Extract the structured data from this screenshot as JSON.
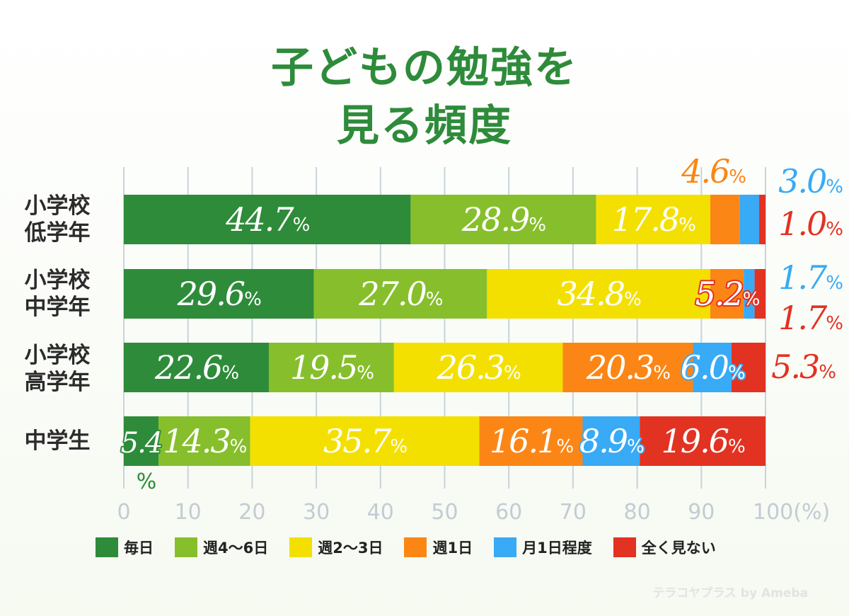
{
  "title_line1": "子どもの勉強を",
  "title_line2": "見る頻度",
  "brand": "テラコヤプラス by Ameba",
  "chart_data": {
    "type": "bar",
    "orientation": "horizontal-stacked-percent",
    "categories": [
      {
        "lines": [
          "小学校",
          "低学年"
        ]
      },
      {
        "lines": [
          "小学校",
          "中学年"
        ]
      },
      {
        "lines": [
          "小学校",
          "高学年"
        ]
      },
      {
        "lines": [
          "中学生"
        ]
      }
    ],
    "series": [
      {
        "name": "毎日",
        "color": "#2e8b3a",
        "label_color": "#ffffff",
        "values": [
          44.7,
          29.6,
          22.6,
          5.4
        ],
        "labels": [
          "44.7",
          "29.6",
          "22.6",
          "5.4"
        ]
      },
      {
        "name": "週4〜6日",
        "color": "#86bf2b",
        "label_color": "#ffffff",
        "values": [
          28.9,
          27.0,
          19.5,
          14.3
        ],
        "labels": [
          "28.9",
          "27.0",
          "19.5",
          "14.3"
        ]
      },
      {
        "name": "週2〜3日",
        "color": "#f3e000",
        "label_color": "#ffffff",
        "values": [
          17.8,
          34.8,
          26.3,
          35.7
        ],
        "labels": [
          "17.8",
          "34.8",
          "26.3",
          "35.7"
        ]
      },
      {
        "name": "週1日",
        "color": "#fb8616",
        "label_color": "#ffffff",
        "values": [
          4.6,
          5.2,
          20.3,
          16.1
        ],
        "labels": [
          "4.6",
          "5.2",
          "20.3",
          "16.1"
        ]
      },
      {
        "name": "月1日程度",
        "color": "#38aaf6",
        "label_color": "#ffffff",
        "values": [
          3.0,
          1.7,
          6.0,
          8.9
        ],
        "labels": [
          "3.0",
          "1.7",
          "6.0",
          "8.9"
        ]
      },
      {
        "name": "全く見ない",
        "color": "#e23222",
        "label_color": "#ffffff",
        "values": [
          1.0,
          1.7,
          5.3,
          19.6
        ],
        "labels": [
          "1.0",
          "1.7",
          "5.3",
          "19.6"
        ]
      }
    ],
    "percent_sign": "%",
    "xlim": [
      0,
      100
    ],
    "x_ticks": [
      "0",
      "10",
      "20",
      "30",
      "40",
      "50",
      "60",
      "70",
      "80",
      "90",
      "100(%)"
    ],
    "grid": true,
    "legend_position": "bottom"
  }
}
